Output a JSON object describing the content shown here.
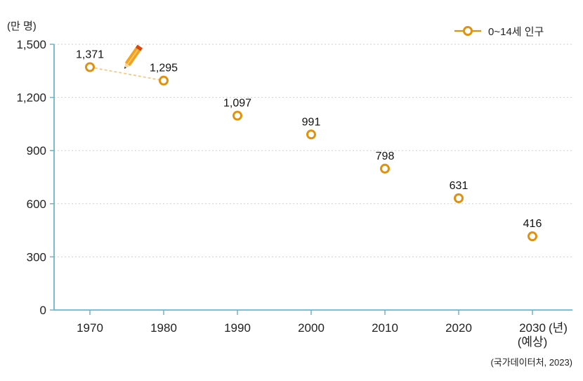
{
  "chart_data": {
    "type": "scatter",
    "y_unit": "(만 명)",
    "x_unit": "(년)",
    "series": [
      {
        "name": "0~14세 인구",
        "color": "#e0920f",
        "x": [
          "1970",
          "1980",
          "1990",
          "2000",
          "2010",
          "2020",
          "2030"
        ],
        "values": [
          1371,
          1295,
          1097,
          991,
          798,
          631,
          416
        ],
        "labels": [
          "1,371",
          "1,295",
          "1,097",
          "991",
          "798",
          "631",
          "416"
        ]
      }
    ],
    "x_notes": {
      "2030": "(예상)"
    },
    "ylim": [
      0,
      1500
    ],
    "yticks": [
      0,
      300,
      600,
      900,
      1200,
      1500
    ],
    "ytick_labels": [
      "0",
      "300",
      "600",
      "900",
      "1,200",
      "1,500"
    ],
    "guide_line": {
      "from": "1970",
      "to": "1980"
    },
    "legend_position": "top-right",
    "grid": true,
    "source": "(국가데이터처, 2023)"
  },
  "colors": {
    "axis": "#6fb3c9",
    "grid": "#cfcfcf",
    "marker": "#e0920f",
    "guide": "#f3c98a",
    "pencil_body": "#f2a21b",
    "pencil_band": "#d9480f"
  }
}
